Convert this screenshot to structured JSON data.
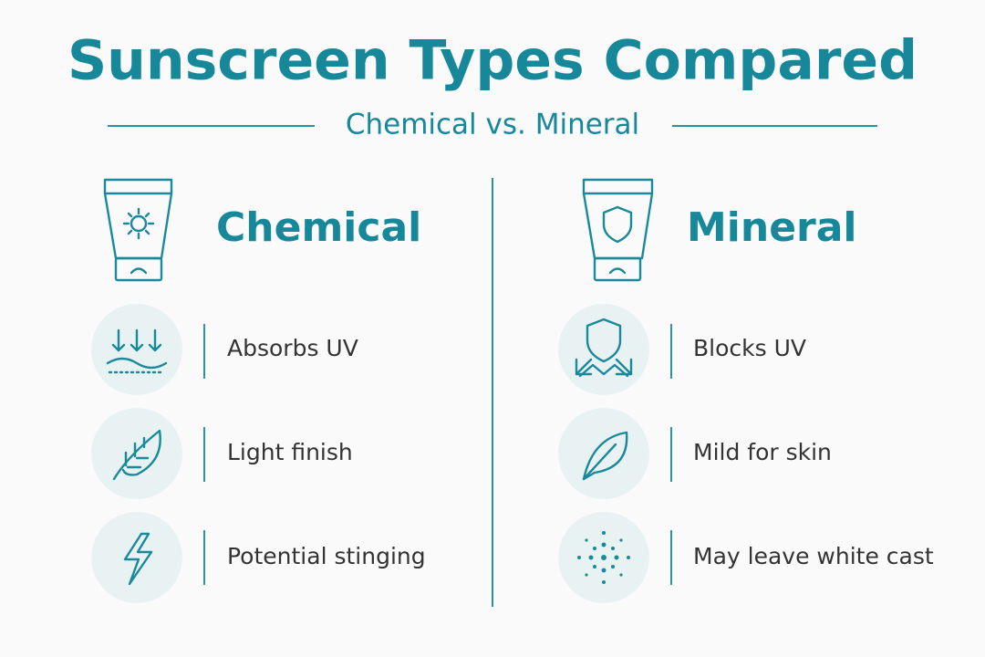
{
  "header": {
    "title": "Sunscreen Types Compared",
    "subtitle": "Chemical vs. Mineral"
  },
  "columns": [
    {
      "title": "Chemical",
      "items": [
        "Absorbs UV",
        "Light finish",
        "Potential stinging"
      ]
    },
    {
      "title": "Mineral",
      "items": [
        "Blocks UV",
        "Mild for skin",
        "May leave white cast"
      ]
    }
  ]
}
